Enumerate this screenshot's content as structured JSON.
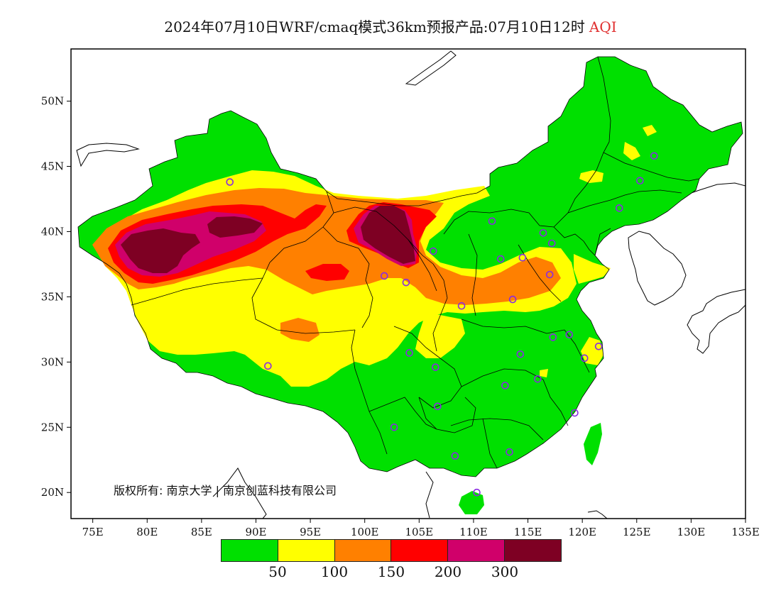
{
  "title": {
    "main": "2024年07月10日WRF/cmaq模式36km预报产品:07月10日12时",
    "variable": "AQI"
  },
  "axes": {
    "x_ticks": [
      "75E",
      "80E",
      "85E",
      "90E",
      "95E",
      "100E",
      "105E",
      "110E",
      "115E",
      "120E",
      "125E",
      "130E",
      "135E"
    ],
    "y_ticks": [
      "50N",
      "45N",
      "40N",
      "35N",
      "30N",
      "25N",
      "20N"
    ],
    "x_range": [
      73,
      135
    ],
    "y_range": [
      18,
      54
    ]
  },
  "copyright": "版权所有: 南京大学 | 南京创蓝科技有限公司",
  "legend": {
    "colors": [
      "#00e000",
      "#ffff00",
      "#ff8000",
      "#ff0000",
      "#d0006a",
      "#7e0023"
    ],
    "labels": [
      "50",
      "100",
      "150",
      "200",
      "300"
    ]
  },
  "stations": [
    {
      "lon": 87.6,
      "lat": 43.8
    },
    {
      "lon": 91.1,
      "lat": 29.7
    },
    {
      "lon": 101.8,
      "lat": 36.6
    },
    {
      "lon": 103.8,
      "lat": 36.1
    },
    {
      "lon": 106.3,
      "lat": 38.5
    },
    {
      "lon": 111.7,
      "lat": 40.8
    },
    {
      "lon": 112.5,
      "lat": 37.9
    },
    {
      "lon": 114.5,
      "lat": 38.0
    },
    {
      "lon": 116.4,
      "lat": 39.9
    },
    {
      "lon": 117.2,
      "lat": 39.1
    },
    {
      "lon": 117.0,
      "lat": 36.7
    },
    {
      "lon": 113.6,
      "lat": 34.8
    },
    {
      "lon": 108.9,
      "lat": 34.3
    },
    {
      "lon": 104.1,
      "lat": 30.7
    },
    {
      "lon": 106.5,
      "lat": 29.6
    },
    {
      "lon": 106.7,
      "lat": 26.6
    },
    {
      "lon": 102.7,
      "lat": 25.0
    },
    {
      "lon": 108.3,
      "lat": 22.8
    },
    {
      "lon": 113.3,
      "lat": 23.1
    },
    {
      "lon": 110.3,
      "lat": 20.0
    },
    {
      "lon": 112.9,
      "lat": 28.2
    },
    {
      "lon": 114.3,
      "lat": 30.6
    },
    {
      "lon": 115.9,
      "lat": 28.7
    },
    {
      "lon": 117.3,
      "lat": 31.9
    },
    {
      "lon": 118.8,
      "lat": 32.1
    },
    {
      "lon": 120.2,
      "lat": 30.3
    },
    {
      "lon": 121.5,
      "lat": 31.2
    },
    {
      "lon": 119.3,
      "lat": 26.1
    },
    {
      "lon": 123.4,
      "lat": 41.8
    },
    {
      "lon": 125.3,
      "lat": 43.9
    },
    {
      "lon": 126.6,
      "lat": 45.8
    }
  ]
}
